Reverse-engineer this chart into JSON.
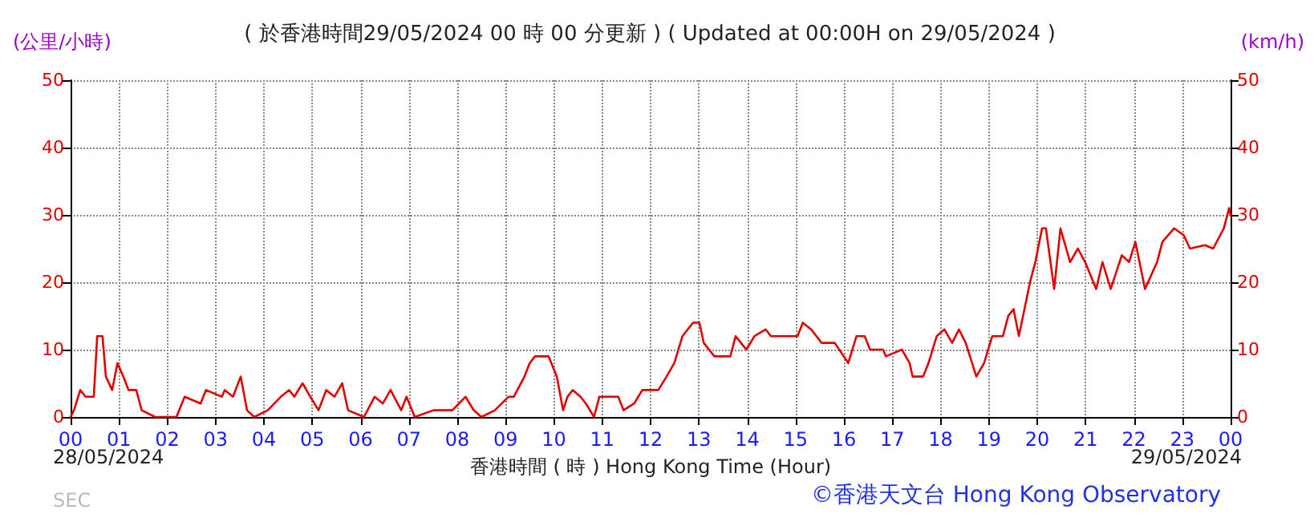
{
  "chart_data": {
    "type": "line",
    "title": "( 於香港時間29/05/2024 00 時 00 分更新 ) ( Updated at 00:00H on 29/05/2024 )",
    "xlabel": "香港時間 ( 時 ) Hong Kong Time (Hour)",
    "ylabel": "(公里/小時)",
    "y2label": "(km/h)",
    "annotations": [
      "28/05/2024",
      "29/05/2024",
      "SEC",
      "©香港天文台 Hong Kong Observatory"
    ],
    "x": [
      0,
      0.07,
      0.2,
      0.31,
      0.48,
      0.55,
      0.66,
      0.73,
      0.86,
      0.97,
      1.09,
      1.2,
      1.36,
      1.47,
      1.75,
      2.19,
      2.36,
      2.69,
      2.8,
      3.13,
      3.19,
      3.36,
      3.52,
      3.65,
      3.8,
      4.08,
      4.35,
      4.52,
      4.63,
      4.8,
      4.96,
      5.13,
      5.29,
      5.46,
      5.62,
      5.74,
      6.07,
      6.29,
      6.46,
      6.62,
      6.84,
      6.95,
      7.12,
      7.51,
      7.9,
      8.17,
      8.34,
      8.5,
      8.78,
      9.06,
      9.17,
      9.39,
      9.5,
      9.61,
      9.89,
      10.06,
      10.19,
      10.28,
      10.39,
      10.55,
      10.66,
      10.83,
      10.94,
      11.33,
      11.44,
      11.66,
      11.83,
      12.16,
      12.33,
      12.49,
      12.66,
      12.77,
      12.88,
      13.01,
      13.1,
      13.32,
      13.65,
      13.76,
      13.87,
      13.98,
      14.15,
      14.38,
      14.49,
      15.04,
      15.15,
      15.32,
      15.54,
      15.81,
      16.09,
      16.26,
      16.43,
      16.54,
      16.81,
      16.87,
      17.2,
      17.36,
      17.42,
      17.64,
      17.75,
      17.92,
      18.08,
      18.24,
      18.38,
      18.52,
      18.74,
      18.9,
      19.07,
      19.29,
      19.4,
      19.51,
      19.62,
      19.85,
      19.96,
      20.1,
      20.18,
      20.35,
      20.48,
      20.68,
      20.84,
      20.99,
      21.22,
      21.35,
      21.52,
      21.75,
      21.9,
      22.03,
      22.23,
      22.48,
      22.59,
      22.83,
      23.03,
      23.16,
      23.47,
      23.64,
      23.86,
      23.97,
      24
    ],
    "series": [
      {
        "color": "#e00000",
        "values": [
          0,
          1,
          4,
          3,
          3,
          12,
          12,
          6,
          4,
          8,
          6,
          4,
          4,
          1,
          0,
          0,
          3,
          2,
          4,
          3,
          4,
          3,
          6,
          1,
          0,
          1,
          3,
          4,
          3,
          5,
          3,
          1,
          4,
          3,
          5,
          1,
          0,
          3,
          2,
          4,
          1,
          3,
          0,
          1,
          1,
          3,
          1,
          0,
          1,
          3,
          3,
          6,
          8,
          9,
          9,
          6,
          1,
          3,
          4,
          3,
          2,
          0,
          3,
          3,
          1,
          2,
          4,
          4,
          6,
          8,
          12,
          13,
          14,
          14,
          11,
          9,
          9,
          12,
          11,
          10,
          12,
          13,
          12,
          12,
          14,
          13,
          11,
          11,
          8,
          12,
          12,
          10,
          10,
          9,
          10,
          8,
          6,
          6,
          8,
          12,
          13,
          11,
          13,
          11,
          6,
          8,
          12,
          12,
          15,
          16,
          12,
          20,
          23,
          28,
          28,
          19,
          28,
          23,
          25,
          23,
          19,
          23,
          19,
          24,
          23,
          26,
          19,
          23,
          26,
          28,
          27,
          25,
          25.5,
          25,
          28,
          31,
          30
        ]
      }
    ],
    "xlim": [
      0,
      24
    ],
    "xticks": [
      {
        "value": 0,
        "label": "00"
      },
      {
        "value": 1,
        "label": "01"
      },
      {
        "value": 2,
        "label": "02"
      },
      {
        "value": 3,
        "label": "03"
      },
      {
        "value": 4,
        "label": "04"
      },
      {
        "value": 5,
        "label": "05"
      },
      {
        "value": 6,
        "label": "06"
      },
      {
        "value": 7,
        "label": "07"
      },
      {
        "value": 8,
        "label": "08"
      },
      {
        "value": 9,
        "label": "09"
      },
      {
        "value": 10,
        "label": "10"
      },
      {
        "value": 11,
        "label": "11"
      },
      {
        "value": 12,
        "label": "12"
      },
      {
        "value": 13,
        "label": "13"
      },
      {
        "value": 14,
        "label": "14"
      },
      {
        "value": 15,
        "label": "15"
      },
      {
        "value": 16,
        "label": "16"
      },
      {
        "value": 17,
        "label": "17"
      },
      {
        "value": 18,
        "label": "18"
      },
      {
        "value": 19,
        "label": "19"
      },
      {
        "value": 20,
        "label": "20"
      },
      {
        "value": 21,
        "label": "21"
      },
      {
        "value": 22,
        "label": "22"
      },
      {
        "value": 23,
        "label": "23"
      },
      {
        "value": 24,
        "label": "00"
      }
    ],
    "ylim": [
      0,
      50
    ],
    "yticks": [
      0,
      10,
      20,
      30,
      40,
      50
    ],
    "y2lim": [
      0,
      50
    ],
    "y2ticks": [
      0,
      10,
      20,
      30,
      40,
      50
    ],
    "grid": true,
    "marker": "none",
    "line_style": "solid"
  }
}
